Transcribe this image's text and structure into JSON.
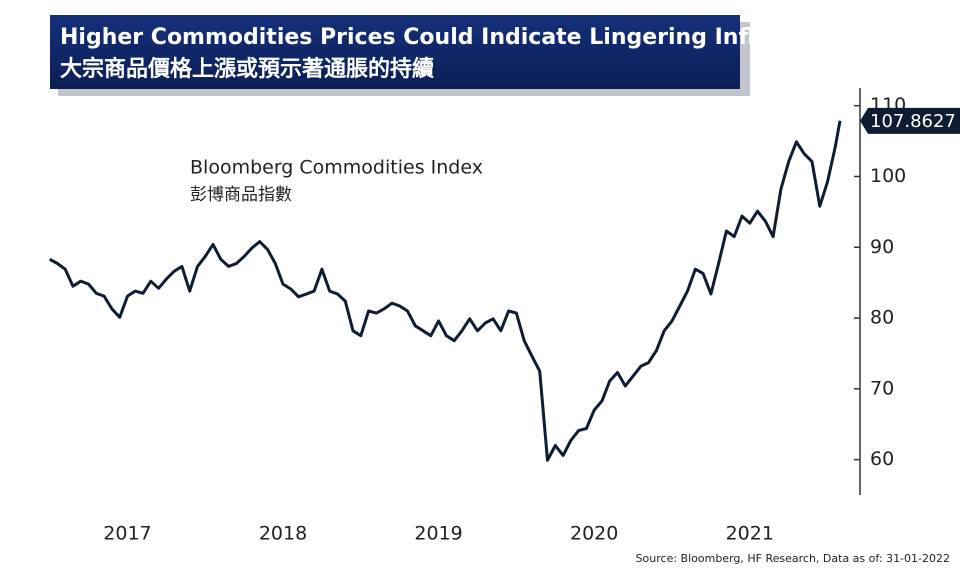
{
  "chart_data": {
    "type": "line",
    "title": "Higher Commodities Prices Could Indicate Lingering Inflation",
    "subtitle": "大宗商品價格上漲或預示著通脹的持續",
    "annotation": "Bloomberg Commodities Index",
    "annotation_zh": "彭博商品指數",
    "source": "Source: Bloomberg, HF Research, Data as of: 31-01-2022",
    "color": "#0f1c33",
    "x": [
      2017.0,
      2017.05,
      2017.1,
      2017.15,
      2017.2,
      2017.25,
      2017.3,
      2017.35,
      2017.4,
      2017.45,
      2017.5,
      2017.55,
      2017.6,
      2017.65,
      2017.7,
      2017.75,
      2017.8,
      2017.85,
      2017.9,
      2017.95,
      2018.0,
      2018.05,
      2018.1,
      2018.15,
      2018.2,
      2018.25,
      2018.3,
      2018.35,
      2018.4,
      2018.45,
      2018.5,
      2018.55,
      2018.6,
      2018.65,
      2018.7,
      2018.75,
      2018.8,
      2018.85,
      2018.9,
      2018.95,
      2019.0,
      2019.05,
      2019.1,
      2019.15,
      2019.2,
      2019.25,
      2019.3,
      2019.35,
      2019.4,
      2019.45,
      2019.5,
      2019.55,
      2019.6,
      2019.65,
      2019.7,
      2019.75,
      2019.8,
      2019.85,
      2019.9,
      2019.95,
      2020.0,
      2020.05,
      2020.1,
      2020.15,
      2020.2,
      2020.25,
      2020.3,
      2020.35,
      2020.4,
      2020.45,
      2020.5,
      2020.55,
      2020.6,
      2020.65,
      2020.7,
      2020.75,
      2020.8,
      2020.85,
      2020.9,
      2020.95,
      2021.0,
      2021.05,
      2021.1,
      2021.15,
      2021.2,
      2021.25,
      2021.3,
      2021.35,
      2021.4,
      2021.45,
      2021.5,
      2021.55,
      2021.6,
      2021.65,
      2021.7,
      2021.75,
      2021.8,
      2021.85,
      2021.9,
      2021.95,
      2022.0,
      2022.05,
      2022.08
    ],
    "values": [
      88.3,
      87.7,
      86.9,
      84.5,
      85.2,
      84.8,
      83.5,
      83.1,
      81.3,
      80.1,
      83.1,
      83.8,
      83.5,
      85.2,
      84.2,
      85.5,
      86.6,
      87.3,
      83.8,
      87.3,
      88.7,
      90.4,
      88.3,
      87.3,
      87.7,
      88.7,
      89.9,
      90.8,
      89.7,
      87.7,
      84.8,
      84.1,
      83.0,
      83.4,
      83.8,
      86.9,
      83.8,
      83.4,
      82.4,
      78.2,
      77.5,
      81.0,
      80.7,
      81.3,
      82.1,
      81.7,
      81.0,
      78.9,
      78.2,
      77.5,
      79.6,
      77.5,
      76.8,
      78.2,
      79.9,
      78.2,
      79.3,
      79.9,
      78.2,
      81.0,
      80.7,
      76.8,
      74.6,
      72.5,
      59.9,
      62.0,
      60.6,
      62.7,
      64.1,
      64.4,
      67.0,
      68.3,
      71.1,
      72.3,
      70.4,
      71.8,
      73.2,
      73.7,
      75.4,
      78.2,
      79.6,
      81.7,
      83.8,
      86.9,
      86.3,
      83.4,
      87.7,
      92.3,
      91.5,
      94.4,
      93.4,
      95.1,
      93.7,
      91.5,
      98.2,
      102.1,
      104.9,
      103.2,
      102.1,
      95.8,
      99.3,
      104.2,
      107.8627
    ],
    "xlim": [
      2016.97,
      2022.17
    ],
    "xticks": [
      {
        "value": 2017.5,
        "label": "2017"
      },
      {
        "value": 2018.5,
        "label": "2018"
      },
      {
        "value": 2019.5,
        "label": "2019"
      },
      {
        "value": 2020.5,
        "label": "2020"
      },
      {
        "value": 2021.5,
        "label": "2021"
      }
    ],
    "ylim": [
      55,
      112.5
    ],
    "yticks": [
      60,
      70,
      80,
      90,
      100,
      110
    ],
    "grid": false
  }
}
